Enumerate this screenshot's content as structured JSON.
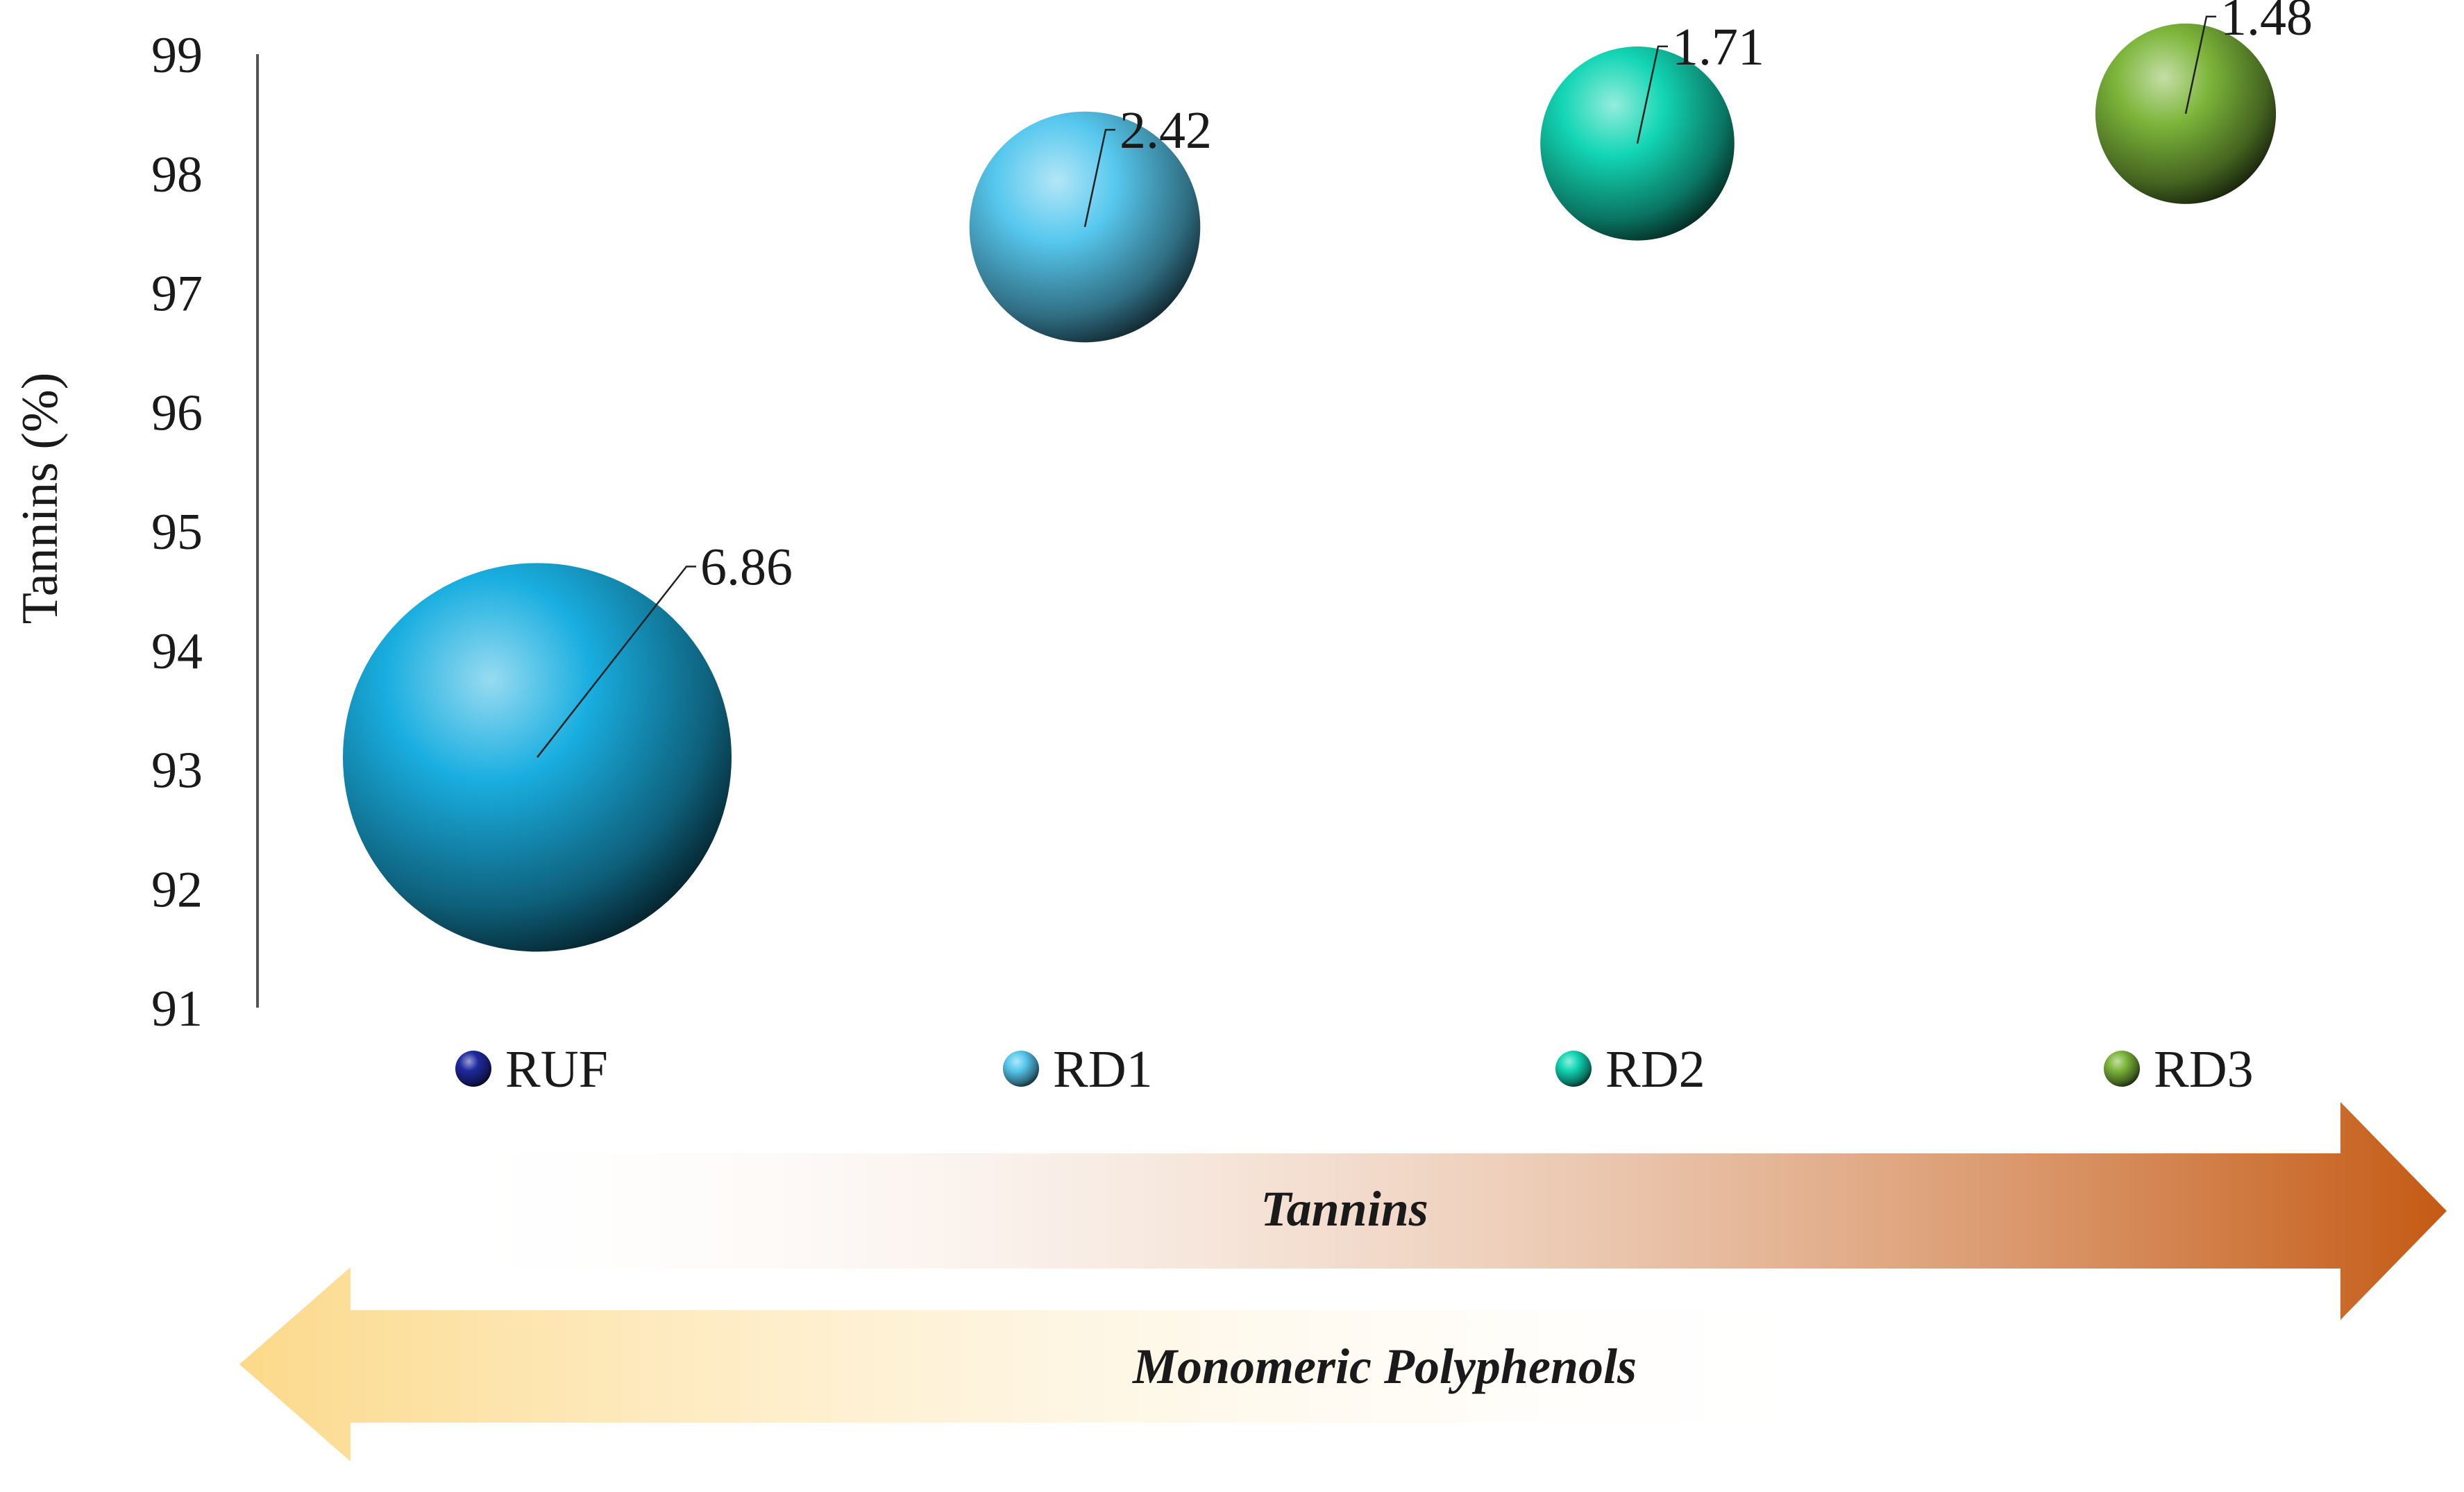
{
  "chart_data": {
    "type": "bubble",
    "ylabel": "Tannins (%)",
    "ylim": [
      91,
      99
    ],
    "yticks": [
      91,
      92,
      93,
      94,
      95,
      96,
      97,
      98,
      99
    ],
    "series": [
      {
        "name": "RUF",
        "y": 93.1,
        "size": 6.86,
        "size_label": "6.86",
        "legend_color": "#1f2a9e",
        "bubble_color": "#19aee0"
      },
      {
        "name": "RD1",
        "y": 97.55,
        "size": 2.42,
        "size_label": "2.42",
        "legend_color": "#57c8ee",
        "bubble_color": "#57c8ee"
      },
      {
        "name": "RD2",
        "y": 98.25,
        "size": 1.71,
        "size_label": "1.71",
        "legend_color": "#12d6b4",
        "bubble_color": "#12d6b4"
      },
      {
        "name": "RD3",
        "y": 98.5,
        "size": 1.48,
        "size_label": "1.48",
        "legend_color": "#7cb53a",
        "bubble_color": "#7cb53a"
      }
    ],
    "legend_position": "bottom",
    "grid": false
  },
  "arrows": [
    {
      "label": "Tannins",
      "direction": "right",
      "color": "#c45a14"
    },
    {
      "label": "Monomeric Polyphenols",
      "direction": "left",
      "color": "#fcd98a"
    }
  ]
}
